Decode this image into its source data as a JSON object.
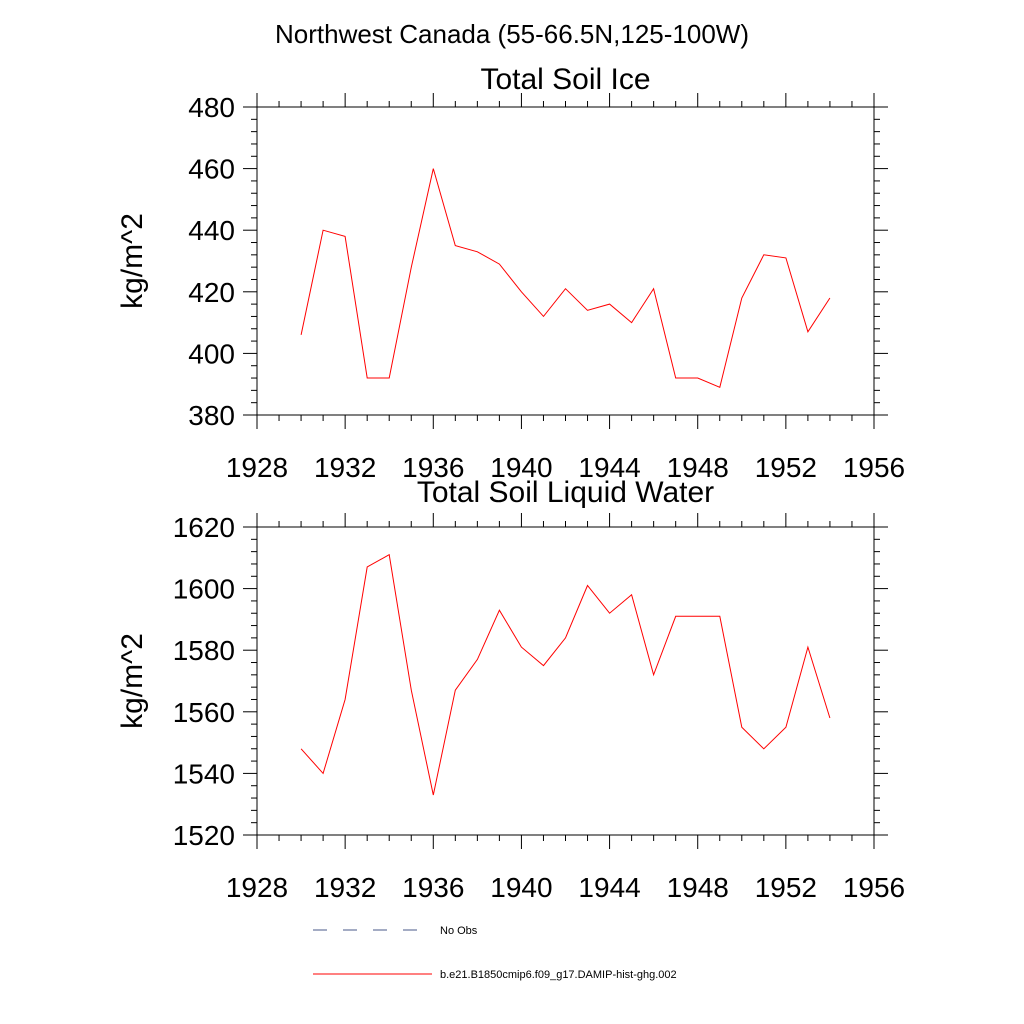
{
  "figure": {
    "supertitle": "Northwest Canada (55-66.5N,125-100W)"
  },
  "legend": {
    "items": [
      {
        "label": "No Obs",
        "style": "dashed",
        "color": "#4a5a8a"
      },
      {
        "label": "b.e21.B1850cmip6.f09_g17.DAMIP-hist-ghg.002",
        "style": "solid",
        "color": "#ff0000"
      }
    ]
  },
  "chart_data": [
    {
      "type": "line",
      "title": "Total Soil Ice",
      "xlabel": "",
      "ylabel": "kg/m^2",
      "xlim": [
        1928,
        1956
      ],
      "ylim": [
        380,
        480
      ],
      "xticks": [
        1928,
        1932,
        1936,
        1940,
        1944,
        1948,
        1952,
        1956
      ],
      "yticks": [
        380,
        400,
        420,
        440,
        460,
        480
      ],
      "grid": false,
      "series": [
        {
          "name": "b.e21.B1850cmip6.f09_g17.DAMIP-hist-ghg.002",
          "color": "#ff0000",
          "x": [
            1930,
            1931,
            1932,
            1933,
            1934,
            1935,
            1936,
            1937,
            1938,
            1939,
            1940,
            1941,
            1942,
            1943,
            1944,
            1945,
            1946,
            1947,
            1948,
            1949,
            1950,
            1951,
            1952,
            1953,
            1954
          ],
          "y": [
            406,
            440,
            438,
            392,
            392,
            428,
            460,
            435,
            433,
            429,
            420,
            412,
            421,
            414,
            416,
            410,
            421,
            392,
            392,
            389,
            418,
            432,
            431,
            407,
            418
          ]
        }
      ]
    },
    {
      "type": "line",
      "title": "Total Soil Liquid Water",
      "xlabel": "",
      "ylabel": "kg/m^2",
      "xlim": [
        1928,
        1956
      ],
      "ylim": [
        1520,
        1620
      ],
      "xticks": [
        1928,
        1932,
        1936,
        1940,
        1944,
        1948,
        1952,
        1956
      ],
      "yticks": [
        1520,
        1540,
        1560,
        1580,
        1600,
        1620
      ],
      "grid": false,
      "series": [
        {
          "name": "b.e21.B1850cmip6.f09_g17.DAMIP-hist-ghg.002",
          "color": "#ff0000",
          "x": [
            1930,
            1931,
            1932,
            1933,
            1934,
            1935,
            1936,
            1937,
            1938,
            1939,
            1940,
            1941,
            1942,
            1943,
            1944,
            1945,
            1946,
            1947,
            1948,
            1949,
            1950,
            1951,
            1952,
            1953,
            1954
          ],
          "y": [
            1548,
            1540,
            1564,
            1607,
            1611,
            1567,
            1533,
            1567,
            1577,
            1593,
            1581,
            1575,
            1584,
            1601,
            1592,
            1598,
            1572,
            1591,
            1591,
            1591,
            1555,
            1548,
            1555,
            1581,
            1558
          ]
        }
      ]
    }
  ]
}
